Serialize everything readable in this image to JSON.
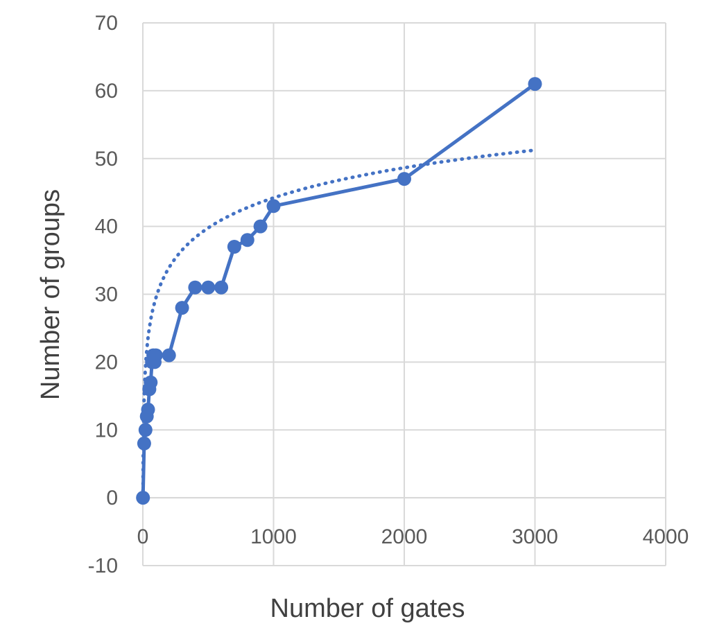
{
  "chart_data": {
    "type": "scatter",
    "title": "",
    "xlabel": "Number of gates",
    "ylabel": "Number of groups",
    "xlim": [
      0,
      4000
    ],
    "ylim": [
      -10,
      70
    ],
    "x_ticks": [
      0,
      1000,
      2000,
      3000,
      4000
    ],
    "y_ticks": [
      -10,
      0,
      10,
      20,
      30,
      40,
      50,
      60,
      70
    ],
    "x_tick_labels": [
      "0",
      "1000",
      "2000",
      "3000",
      "4000"
    ],
    "y_tick_labels": [
      "-10",
      "0",
      "10",
      "20",
      "30",
      "40",
      "50",
      "60",
      "70"
    ],
    "grid": true,
    "legend": "none",
    "series": [
      {
        "style": "solid line with circle markers",
        "color": "#4472c4",
        "x": [
          1,
          10,
          20,
          30,
          40,
          50,
          60,
          70,
          80,
          90,
          100,
          200,
          300,
          400,
          500,
          600,
          700,
          800,
          900,
          1000,
          2000,
          3000
        ],
        "y": [
          0,
          8,
          10,
          12,
          13,
          16,
          17,
          20,
          21,
          20,
          21,
          21,
          28,
          31,
          31,
          31,
          37,
          38,
          40,
          43,
          47,
          61
        ]
      }
    ],
    "trendline": {
      "type": "logarithmic",
      "style": "dotted",
      "color": "#4472c4",
      "x_range": [
        1,
        3000
      ],
      "a": 6.4,
      "b": 0
    }
  }
}
